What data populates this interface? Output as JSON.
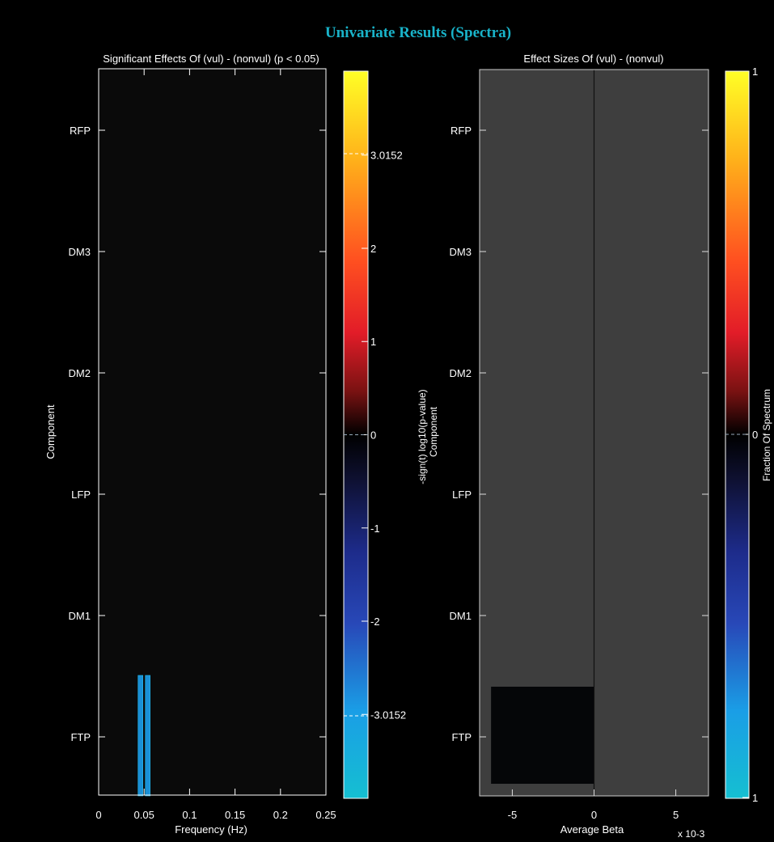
{
  "figure_title": "Univariate Results (Spectra)",
  "colors": {
    "background": "#000000",
    "title": "#19b3c9",
    "left_plot_bg": "#0a0a0a",
    "right_plot_bg": "#3e3e3e",
    "axis": "#ffffff",
    "sig_bar": "#1a8fd6",
    "effect_bar": "#050608"
  },
  "chart_data": [
    {
      "type": "bar",
      "title": "Significant Effects Of (vul) - (nonvul) (p < 0.05)",
      "xlabel": "Frequency (Hz)",
      "ylabel": "Component",
      "categories": [
        "RFP",
        "DM3",
        "DM2",
        "LFP",
        "DM1",
        "FTP"
      ],
      "xlim": [
        0,
        0.25
      ],
      "xticks": [
        "0",
        "0.05",
        "0.1",
        "0.15",
        "0.2",
        "0.25"
      ],
      "xtick_values": [
        0,
        0.05,
        0.1,
        0.15,
        0.2,
        0.25
      ],
      "significant_cells": [
        {
          "component": "FTP",
          "frequency": 0.046,
          "value": -3.0152
        },
        {
          "component": "FTP",
          "frequency": 0.054,
          "value": -3.0152
        }
      ],
      "colorbar": {
        "label": "-sign(t) log10(p-value)",
        "range": [
          -3.9,
          3.9
        ],
        "tick_values": [
          3,
          2,
          1,
          0,
          -1,
          -2,
          -3
        ],
        "tick_labels": [
          "3.0152",
          "2",
          "1",
          "0",
          "-1",
          "-2",
          "-3.0152"
        ],
        "threshold": 3.0152
      }
    },
    {
      "type": "bar",
      "orientation": "horizontal",
      "title": "Effect Sizes Of (vul) - (nonvul)",
      "xlabel": "Average Beta",
      "x_multiplier": "x 10-3",
      "ylabel": "Component",
      "categories": [
        "RFP",
        "DM3",
        "DM2",
        "LFP",
        "DM1",
        "FTP"
      ],
      "xlim": [
        -7.0,
        7.0
      ],
      "xticks": [
        "-5",
        "0",
        "5"
      ],
      "xtick_values": [
        -5,
        0,
        5
      ],
      "values": [
        0,
        0,
        0,
        0,
        0,
        -6.3
      ],
      "colorbar": {
        "label": "Fraction Of Spectrum",
        "tick_labels": [
          "1",
          "0",
          "1"
        ]
      }
    }
  ]
}
